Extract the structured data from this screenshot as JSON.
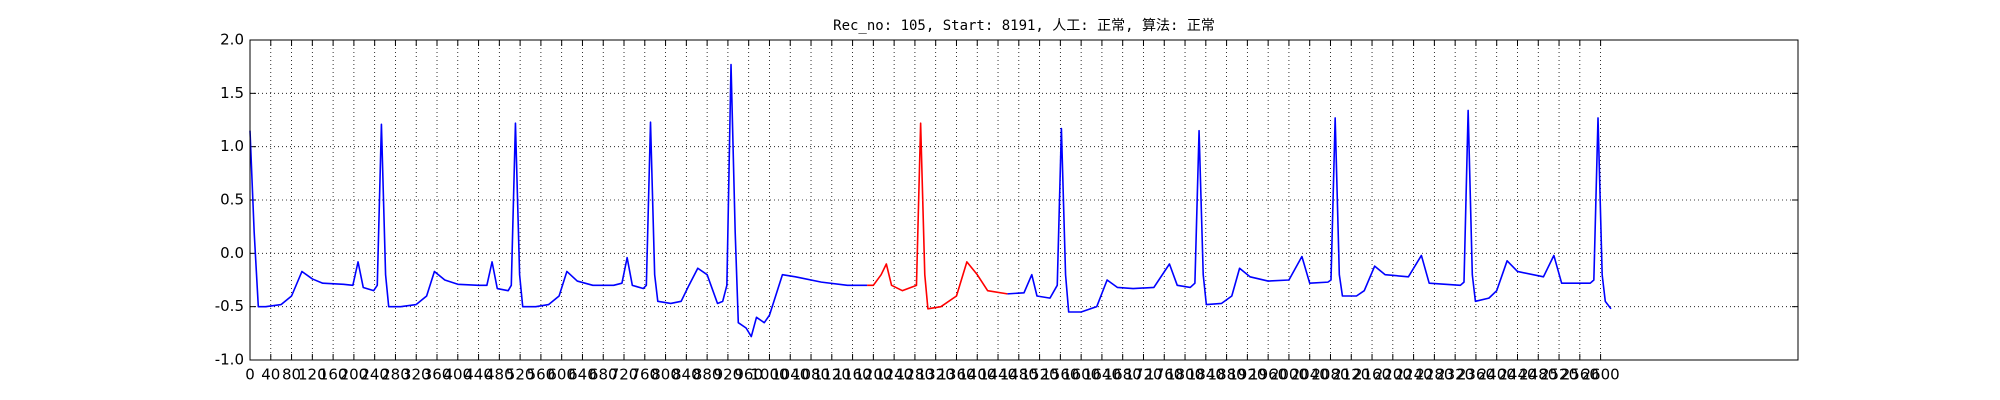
{
  "chart_data": {
    "type": "line",
    "title": "Rec_no: 105, Start: 8191, 人工: 正常, 算法: 正常",
    "x": [
      0,
      8,
      16,
      30,
      60,
      80,
      100,
      120,
      140,
      180,
      198,
      208,
      218,
      238,
      245,
      253,
      261,
      267,
      290,
      320,
      340,
      355,
      375,
      400,
      440,
      456,
      466,
      476,
      497,
      503,
      511,
      519,
      525,
      550,
      575,
      595,
      610,
      630,
      660,
      700,
      716,
      726,
      736,
      757,
      763,
      771,
      779,
      785,
      810,
      830,
      845,
      862,
      880,
      900,
      910,
      918,
      926,
      934,
      940,
      955,
      965,
      975,
      990,
      1000,
      1025,
      1050,
      1100,
      1150,
      1188,
      1200,
      1215,
      1225,
      1235,
      1256,
      1283,
      1291,
      1299,
      1305,
      1330,
      1360,
      1380,
      1400,
      1420,
      1458,
      1490,
      1505,
      1515,
      1540,
      1554,
      1562,
      1570,
      1576,
      1600,
      1630,
      1650,
      1670,
      1700,
      1740,
      1770,
      1785,
      1810,
      1819,
      1827,
      1835,
      1841,
      1870,
      1890,
      1905,
      1925,
      1960,
      2000,
      2025,
      2040,
      2075,
      2081,
      2089,
      2097,
      2103,
      2130,
      2145,
      2165,
      2185,
      2230,
      2255,
      2270,
      2330,
      2337,
      2345,
      2353,
      2359,
      2385,
      2400,
      2420,
      2440,
      2490,
      2510,
      2525,
      2580,
      2587,
      2595,
      2603,
      2609,
      2620
    ],
    "series": [
      {
        "color": "#0000ff",
        "values": [
          1.15,
          0.2,
          -0.5,
          -0.5,
          -0.48,
          -0.4,
          -0.17,
          -0.24,
          -0.28,
          -0.29,
          -0.3,
          -0.08,
          -0.32,
          -0.35,
          -0.3,
          1.21,
          -0.2,
          -0.5,
          -0.5,
          -0.48,
          -0.4,
          -0.17,
          -0.25,
          -0.29,
          -0.3,
          -0.3,
          -0.08,
          -0.33,
          -0.35,
          -0.3,
          1.22,
          -0.2,
          -0.5,
          -0.5,
          -0.48,
          -0.4,
          -0.17,
          -0.26,
          -0.3,
          -0.3,
          -0.28,
          -0.04,
          -0.3,
          -0.33,
          -0.3,
          1.23,
          -0.2,
          -0.45,
          -0.47,
          -0.45,
          -0.3,
          -0.14,
          -0.2,
          -0.47,
          -0.45,
          -0.3,
          1.77,
          0.2,
          -0.65,
          -0.7,
          -0.78,
          -0.6,
          -0.65,
          -0.58,
          -0.2,
          -0.22,
          -0.27,
          -0.3,
          -0.3,
          null,
          null,
          null,
          null,
          null,
          null,
          null,
          null,
          null,
          null,
          null,
          null,
          null,
          null,
          -0.38,
          -0.37,
          -0.2,
          -0.4,
          -0.42,
          -0.3,
          1.17,
          -0.2,
          -0.55,
          -0.55,
          -0.5,
          -0.25,
          -0.32,
          -0.33,
          -0.32,
          -0.1,
          -0.3,
          -0.32,
          -0.28,
          1.15,
          -0.2,
          -0.48,
          -0.47,
          -0.4,
          -0.14,
          -0.22,
          -0.26,
          -0.25,
          -0.03,
          -0.28,
          -0.27,
          -0.25,
          1.27,
          -0.2,
          -0.4,
          -0.4,
          -0.35,
          -0.12,
          -0.2,
          -0.22,
          -0.02,
          -0.28,
          -0.3,
          -0.27,
          1.34,
          -0.2,
          -0.45,
          -0.42,
          -0.35,
          -0.07,
          -0.17,
          -0.22,
          -0.02,
          -0.28,
          -0.28,
          -0.25,
          1.27,
          -0.2,
          -0.45,
          -0.52
        ]
      },
      {
        "color": "#ff0000",
        "values": [
          null,
          null,
          null,
          null,
          null,
          null,
          null,
          null,
          null,
          null,
          null,
          null,
          null,
          null,
          null,
          null,
          null,
          null,
          null,
          null,
          null,
          null,
          null,
          null,
          null,
          null,
          null,
          null,
          null,
          null,
          null,
          null,
          null,
          null,
          null,
          null,
          null,
          null,
          null,
          null,
          null,
          null,
          null,
          null,
          null,
          null,
          null,
          null,
          null,
          null,
          null,
          null,
          null,
          null,
          null,
          null,
          null,
          null,
          null,
          null,
          null,
          null,
          null,
          null,
          null,
          null,
          null,
          null,
          -0.3,
          -0.3,
          -0.2,
          -0.1,
          -0.3,
          -0.35,
          -0.3,
          1.22,
          -0.2,
          -0.52,
          -0.5,
          -0.4,
          -0.08,
          -0.2,
          -0.35,
          -0.38,
          null,
          null,
          null,
          null,
          null,
          null,
          null,
          null,
          null,
          null,
          null,
          null,
          null,
          null,
          null,
          null,
          null,
          null,
          null,
          null,
          null,
          null,
          null,
          null,
          null,
          null,
          null,
          null,
          null,
          null,
          null,
          null,
          null,
          null,
          null,
          null,
          null,
          null,
          null,
          null,
          null,
          null,
          null,
          null,
          null,
          null,
          null,
          null,
          null,
          null,
          null,
          null,
          null,
          null,
          null,
          null,
          null,
          null,
          null
        ]
      }
    ],
    "xlim": [
      0,
      2980
    ],
    "xticks": [
      0,
      40,
      80,
      120,
      160,
      200,
      240,
      280,
      320,
      360,
      400,
      440,
      480,
      520,
      560,
      600,
      640,
      680,
      720,
      760,
      800,
      840,
      880,
      920,
      960,
      1000,
      1040,
      1080,
      1120,
      1160,
      1200,
      1240,
      1280,
      1320,
      1360,
      1400,
      1440,
      1480,
      1520,
      1560,
      1600,
      1640,
      1680,
      1720,
      1760,
      1800,
      1840,
      1880,
      1920,
      1960,
      2000,
      2040,
      2080,
      2120,
      2160,
      2200,
      2240,
      2280,
      2320,
      2360,
      2400,
      2440,
      2480,
      2520,
      2560,
      2600
    ],
    "ylim": [
      -1,
      2
    ],
    "yticks": [
      {
        "value": -1,
        "label": "-1.0"
      },
      {
        "value": -0.5,
        "label": "-0.5"
      },
      {
        "value": 0,
        "label": "0.0"
      },
      {
        "value": 0.5,
        "label": "0.5"
      },
      {
        "value": 1,
        "label": "1.0"
      },
      {
        "value": 1.5,
        "label": "1.5"
      },
      {
        "value": 2,
        "label": "2.0"
      }
    ],
    "grid": true
  }
}
